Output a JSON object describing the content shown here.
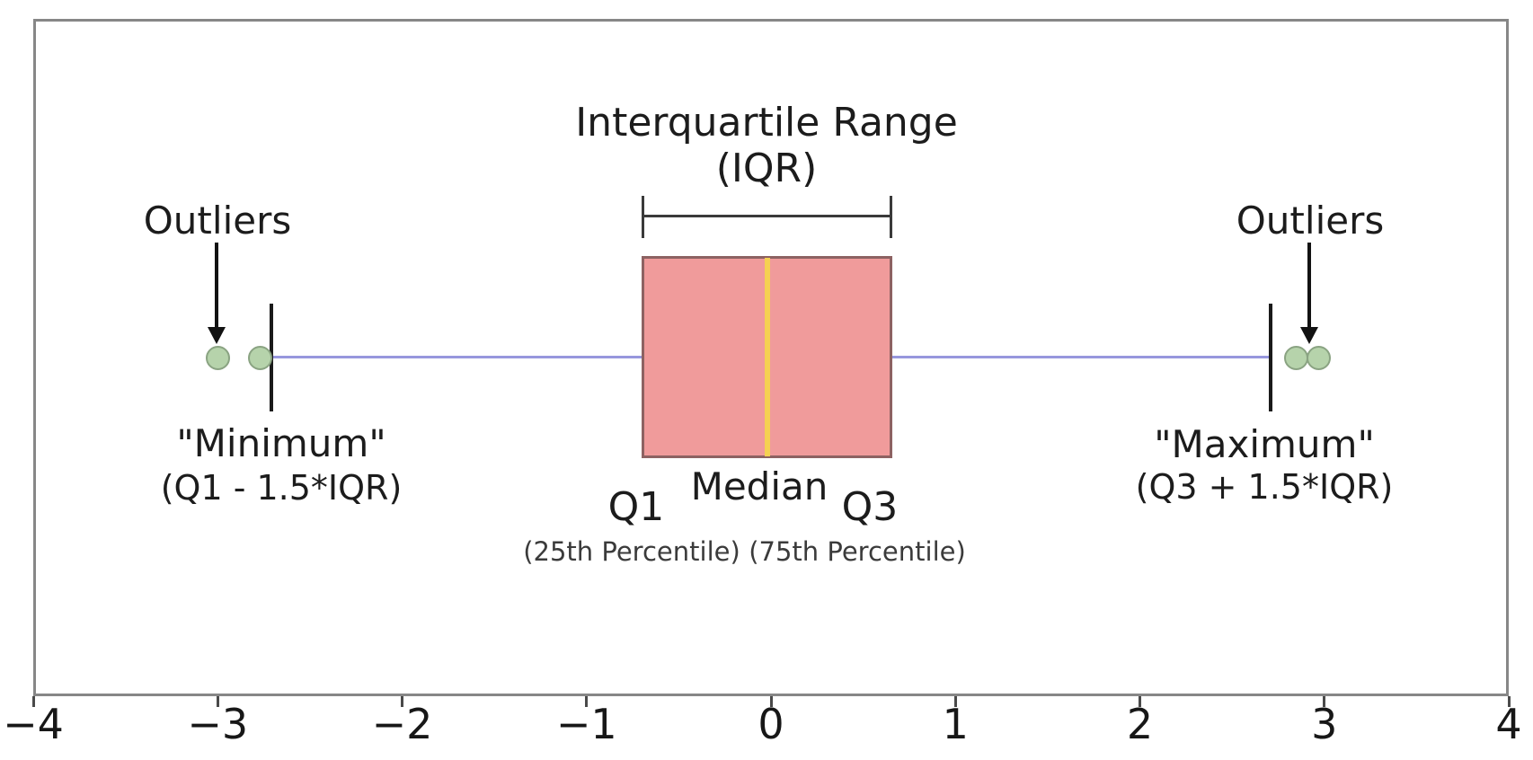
{
  "figure": {
    "title_line1": "Interquartile Range",
    "title_line2": "(IQR)",
    "annotations": {
      "outliers_left": "Outliers",
      "outliers_right": "Outliers",
      "minimum_label": "\"Minimum\"",
      "minimum_formula": "(Q1 - 1.5*IQR)",
      "maximum_label": "\"Maximum\"",
      "maximum_formula": "(Q3 + 1.5*IQR)",
      "q1_label": "Q1",
      "q1_sub": "(25th Percentile)",
      "median_label": "Median",
      "q3_label": "Q3",
      "q3_sub": "(75th Percentile)"
    }
  },
  "chart_data": {
    "type": "boxplot",
    "orientation": "horizontal",
    "title": "Interquartile Range (IQR)",
    "stats": {
      "q1": -0.7,
      "median": -0.02,
      "q3": 0.66,
      "whisker_low": -2.71,
      "whisker_high": 2.71
    },
    "outliers": [
      -3.0,
      -2.77,
      2.85,
      2.97
    ],
    "xlim": [
      -4,
      4
    ],
    "xticks": [
      -4,
      -3,
      -2,
      -1,
      0,
      1,
      2,
      3,
      4
    ],
    "xtick_labels": [
      "−4",
      "−3",
      "−2",
      "−1",
      "0",
      "1",
      "2",
      "3",
      "4"
    ],
    "grid": false,
    "legend": false,
    "colors": {
      "box_fill": "#f09b9b",
      "box_edge": "#8d6262",
      "median": "#f5d152",
      "whisker": "#9797dd",
      "cap": "#1a1a1a",
      "outlier_fill": "#b6d3ab",
      "outlier_edge": "#8aa382",
      "frame": "#878787",
      "text": "#1c1c1c"
    }
  }
}
